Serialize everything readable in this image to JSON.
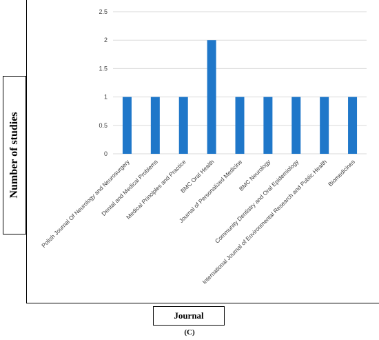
{
  "chart_data": {
    "type": "bar",
    "categories": [
      "Polish Journal Of Neurology and Neurosurgery",
      "Dental and Medical Problems",
      "Medical Principles and Practice",
      "BMC Oral Health",
      "Journal of Personalized Medicine",
      "BMC Neurology",
      "Community Dentistry and Oral Epidemiology",
      "International Journal of Environmental Research and Public Health",
      "Biomedicines"
    ],
    "values": [
      1,
      1,
      1,
      2,
      1,
      1,
      1,
      1,
      1
    ],
    "ylim": [
      0,
      2.5
    ],
    "yticks": [
      "0",
      "0.5",
      "1",
      "1.5",
      "2",
      "2.5"
    ],
    "xlabel": "Journal",
    "ylabel": "Number of studies",
    "grid": true,
    "bar_color": "#1f77c9",
    "grid_color": "#d9d9d9"
  },
  "panel_label": "(C)"
}
